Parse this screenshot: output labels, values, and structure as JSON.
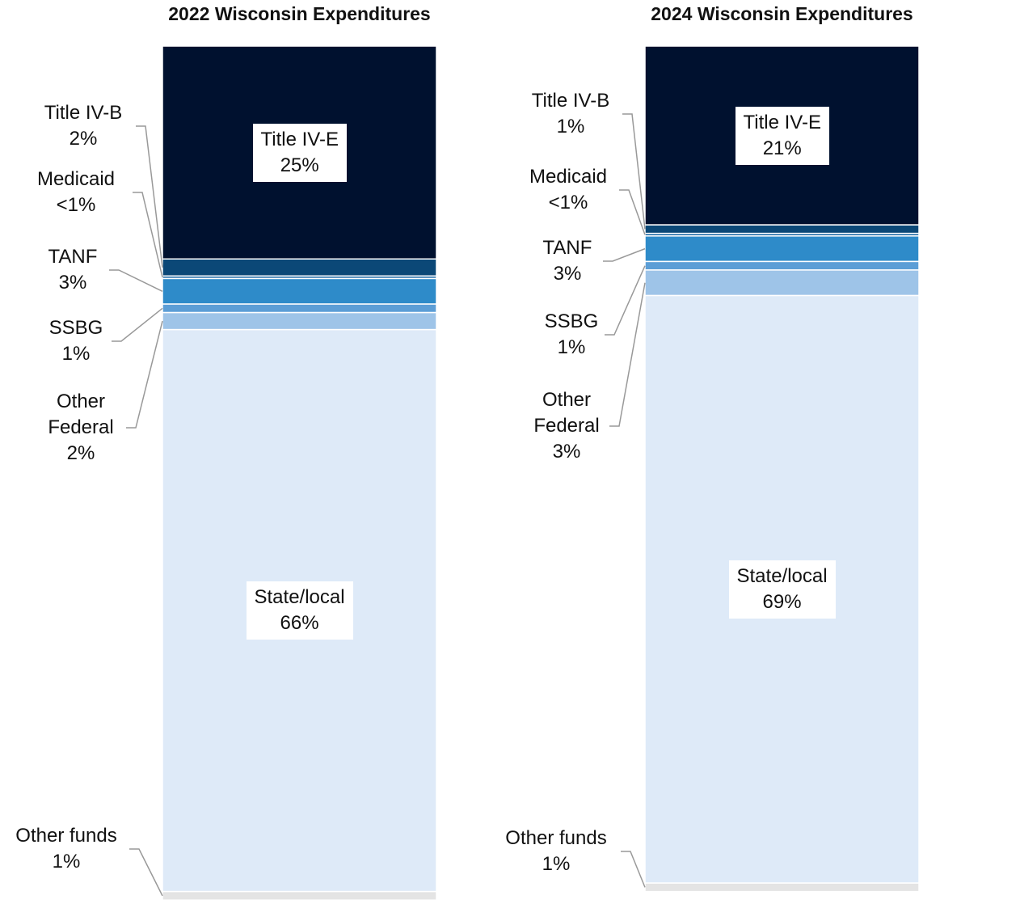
{
  "chart_data": [
    {
      "type": "stacked-bar",
      "title": "2022 Wisconsin Expenditures",
      "ylim": [
        0,
        100
      ],
      "series": [
        {
          "name": "Title IV-E",
          "color": "#00112f",
          "values": [
            25
          ],
          "value_labels": [
            "25%"
          ]
        },
        {
          "name": "Title IV-B",
          "color": "#0b4877",
          "values": [
            2
          ],
          "value_labels": [
            "2%"
          ]
        },
        {
          "name": "Medicaid",
          "color": "#1f6aa5",
          "values": [
            0.3
          ],
          "value_labels": [
            "<1%"
          ]
        },
        {
          "name": "TANF",
          "color": "#2e8bc9",
          "values": [
            3
          ],
          "value_labels": [
            "3%"
          ]
        },
        {
          "name": "SSBG",
          "color": "#5c9ed6",
          "values": [
            1
          ],
          "value_labels": [
            "1%"
          ]
        },
        {
          "name": "Other Federal",
          "color": "#9ec4e8",
          "values": [
            2
          ],
          "value_labels": [
            "2%"
          ]
        },
        {
          "name": "State/local",
          "color": "#deeaf8",
          "values": [
            66
          ],
          "value_labels": [
            "66%"
          ]
        },
        {
          "name": "Other funds",
          "color": "#e4e4e4",
          "values": [
            1
          ],
          "value_labels": [
            "1%"
          ]
        }
      ]
    },
    {
      "type": "stacked-bar",
      "title": "2024 Wisconsin Expenditures",
      "ylim": [
        0,
        100
      ],
      "series": [
        {
          "name": "Title IV-E",
          "color": "#00112f",
          "values": [
            21
          ],
          "value_labels": [
            "21%"
          ]
        },
        {
          "name": "Title IV-B",
          "color": "#0b4877",
          "values": [
            1
          ],
          "value_labels": [
            "1%"
          ]
        },
        {
          "name": "Medicaid",
          "color": "#1f6aa5",
          "values": [
            0.3
          ],
          "value_labels": [
            "<1%"
          ]
        },
        {
          "name": "TANF",
          "color": "#2e8bc9",
          "values": [
            3
          ],
          "value_labels": [
            "3%"
          ]
        },
        {
          "name": "SSBG",
          "color": "#5c9ed6",
          "values": [
            1
          ],
          "value_labels": [
            "1%"
          ]
        },
        {
          "name": "Other Federal",
          "color": "#9ec4e8",
          "values": [
            3
          ],
          "value_labels": [
            "3%"
          ]
        },
        {
          "name": "State/local",
          "color": "#deeaf8",
          "values": [
            69
          ],
          "value_labels": [
            "69%"
          ]
        },
        {
          "name": "Other funds",
          "color": "#e4e4e4",
          "values": [
            1
          ],
          "value_labels": [
            "1%"
          ]
        }
      ]
    }
  ]
}
